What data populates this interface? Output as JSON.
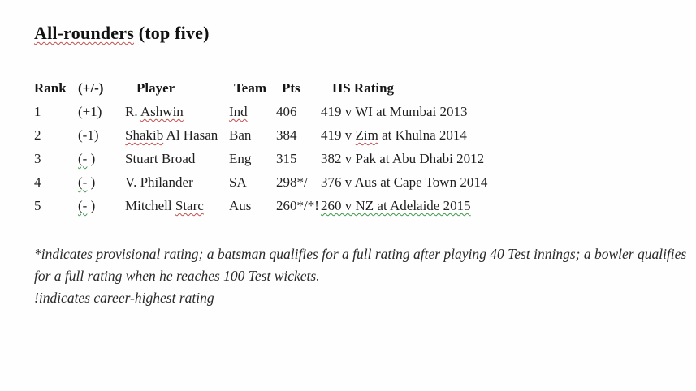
{
  "title": {
    "underlined_word": "All-rounders",
    "rest": " (top five)"
  },
  "table": {
    "columns": [
      "rank",
      "change",
      "player",
      "team",
      "pts",
      "hs"
    ],
    "headers": {
      "rank": "Rank",
      "change": "(+/-)",
      "player": "Player",
      "team": "Team",
      "pts": "Pts",
      "hs": "HS Rating"
    },
    "rows": [
      {
        "rank": [
          {
            "t": "1"
          }
        ],
        "change": [
          {
            "t": "(+1)"
          }
        ],
        "player": [
          {
            "t": "R. "
          },
          {
            "t": "Ashwin",
            "u": "red"
          }
        ],
        "team": [
          {
            "t": "Ind",
            "u": "red"
          }
        ],
        "pts": [
          {
            "t": "406"
          }
        ],
        "hs": [
          {
            "t": "419 v WI at Mumbai 2013"
          }
        ]
      },
      {
        "rank": [
          {
            "t": "2"
          }
        ],
        "change": [
          {
            "t": "(-1)"
          }
        ],
        "player": [
          {
            "t": "Shakib",
            "u": "red"
          },
          {
            "t": " Al Hasan"
          }
        ],
        "team": [
          {
            "t": "Ban"
          }
        ],
        "pts": [
          {
            "t": "384"
          }
        ],
        "hs": [
          {
            "t": "419 v "
          },
          {
            "t": "Zim",
            "u": "red"
          },
          {
            "t": " at Khulna 2014"
          }
        ]
      },
      {
        "rank": [
          {
            "t": "3"
          }
        ],
        "change": [
          {
            "t": "(-",
            "u": "green"
          },
          {
            "t": " )"
          }
        ],
        "player": [
          {
            "t": " Stuart Broad"
          }
        ],
        "team": [
          {
            "t": "Eng"
          }
        ],
        "pts": [
          {
            "t": "315"
          }
        ],
        "hs": [
          {
            "t": "382 v Pak at Abu Dhabi 2012"
          }
        ]
      },
      {
        "rank": [
          {
            "t": "4"
          }
        ],
        "change": [
          {
            "t": "(-",
            "u": "green"
          },
          {
            "t": " )"
          }
        ],
        "player": [
          {
            "t": " V. Philander"
          }
        ],
        "team": [
          {
            "t": "SA"
          }
        ],
        "pts": [
          {
            "t": "298*/"
          }
        ],
        "hs": [
          {
            "t": "376 v Aus at Cape Town 2014"
          }
        ]
      },
      {
        "rank": [
          {
            "t": "5"
          }
        ],
        "change": [
          {
            "t": "(-",
            "u": "green"
          },
          {
            "t": " )"
          }
        ],
        "player": [
          {
            "t": " Mitchell "
          },
          {
            "t": "Starc",
            "u": "red"
          }
        ],
        "team": [
          {
            "t": "Aus"
          }
        ],
        "pts": [
          {
            "t": "260*/*!"
          }
        ],
        "hs": [
          {
            "t": "260 v NZ at Adelaide 2015",
            "u": "green"
          }
        ]
      }
    ]
  },
  "footnotes": {
    "line1": "*indicates provisional rating; a batsman qualifies for a full rating after playing 40 Test innings; a bowler qualifies for a full rating when he reaches 100 Test wickets.",
    "line2": "!indicates career-highest rating"
  },
  "colors": {
    "spellcheck_red": "#c0504d",
    "grammar_green": "#3a9a49",
    "text": "#212121"
  }
}
